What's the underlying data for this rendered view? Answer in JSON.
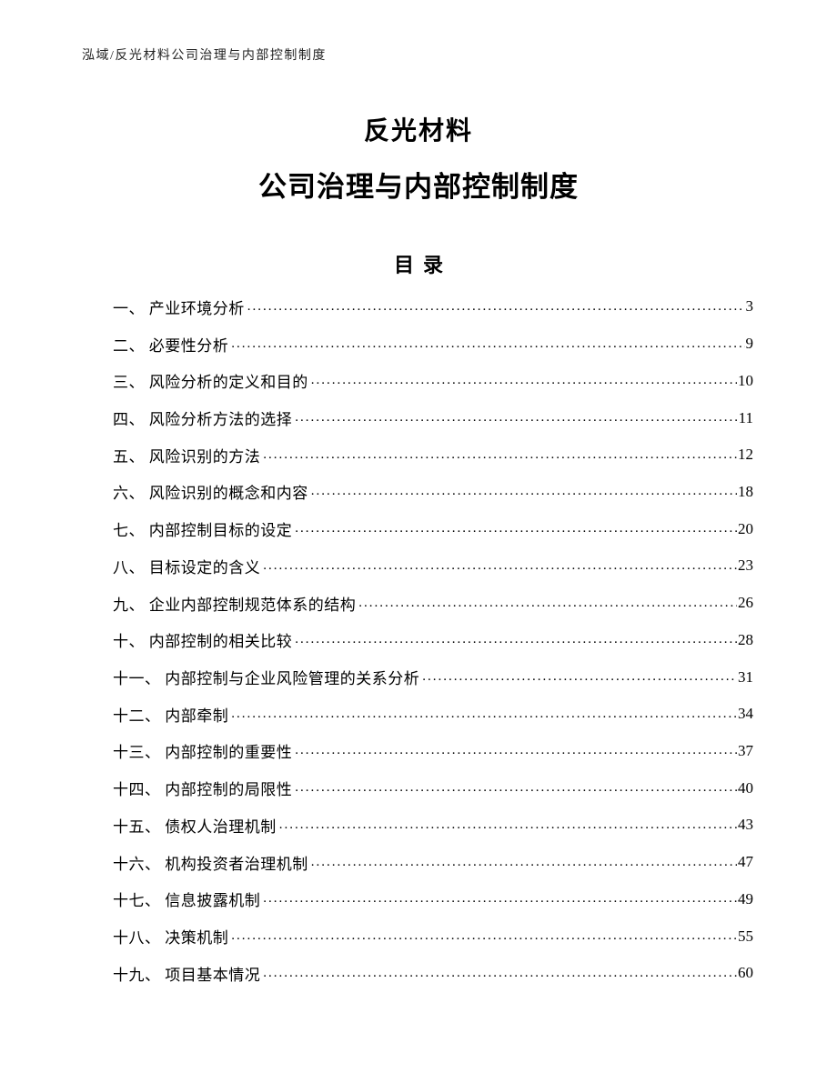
{
  "header": {
    "text": "泓域/反光材料公司治理与内部控制制度"
  },
  "title": {
    "line1": "反光材料",
    "line2": "公司治理与内部控制制度"
  },
  "toc": {
    "heading": "目录",
    "items": [
      {
        "label": "一、 产业环境分析",
        "page": "3"
      },
      {
        "label": "二、 必要性分析",
        "page": "9"
      },
      {
        "label": "三、 风险分析的定义和目的",
        "page": "10"
      },
      {
        "label": "四、 风险分析方法的选择",
        "page": "11"
      },
      {
        "label": "五、 风险识别的方法",
        "page": "12"
      },
      {
        "label": "六、 风险识别的概念和内容",
        "page": "18"
      },
      {
        "label": "七、 内部控制目标的设定",
        "page": "20"
      },
      {
        "label": "八、 目标设定的含义",
        "page": "23"
      },
      {
        "label": "九、 企业内部控制规范体系的结构",
        "page": "26"
      },
      {
        "label": "十、 内部控制的相关比较",
        "page": "28"
      },
      {
        "label": "十一、 内部控制与企业风险管理的关系分析",
        "page": "31"
      },
      {
        "label": "十二、 内部牵制",
        "page": "34"
      },
      {
        "label": "十三、 内部控制的重要性",
        "page": "37"
      },
      {
        "label": "十四、 内部控制的局限性",
        "page": "40"
      },
      {
        "label": "十五、 债权人治理机制",
        "page": "43"
      },
      {
        "label": "十六、 机构投资者治理机制",
        "page": "47"
      },
      {
        "label": "十七、 信息披露机制",
        "page": "49"
      },
      {
        "label": "十八、 决策机制",
        "page": "55"
      },
      {
        "label": "十九、 项目基本情况",
        "page": "60"
      }
    ]
  }
}
